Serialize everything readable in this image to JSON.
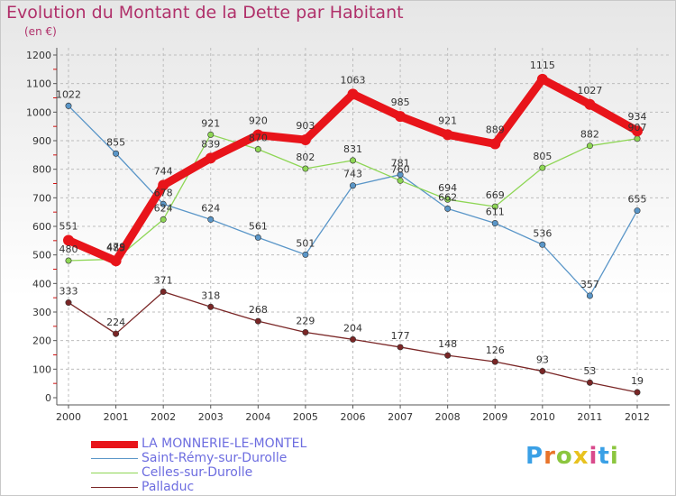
{
  "header": {
    "title": "Evolution du Montant de la Dette par Habitant",
    "subtitle": "(en €)"
  },
  "logo": {
    "text": "Proxiti",
    "colors": [
      "#3aa0e6",
      "#e8742a",
      "#8cc63f",
      "#e8c21f",
      "#d94a8c",
      "#3aa0e6",
      "#8cc63f"
    ]
  },
  "chart_data": {
    "type": "line",
    "title": "Evolution du Montant de la Dette par Habitant",
    "subtitle": "(en €)",
    "xlabel": "",
    "ylabel": "",
    "x": [
      "2000",
      "2001",
      "2002",
      "2003",
      "2004",
      "2005",
      "2006",
      "2007",
      "2008",
      "2009",
      "2010",
      "2011",
      "2012"
    ],
    "ylim": [
      0,
      1200
    ],
    "yticks": [
      0,
      100,
      200,
      300,
      400,
      500,
      600,
      700,
      800,
      900,
      1000,
      1100,
      1200
    ],
    "grid": true,
    "legend_position": "bottom-left",
    "series": [
      {
        "name": "LA MONNERIE-LE-MONTEL",
        "color": "#e8141a",
        "emphasis": "thick",
        "values": [
          551,
          479,
          744,
          839,
          920,
          903,
          1063,
          985,
          921,
          889,
          1115,
          1027,
          934
        ]
      },
      {
        "name": "Saint-Rémy-sur-Durolle",
        "color": "#5a96c8",
        "emphasis": "normal",
        "values": [
          1022,
          855,
          678,
          624,
          561,
          501,
          743,
          781,
          662,
          611,
          536,
          357,
          655
        ]
      },
      {
        "name": "Celles-sur-Durolle",
        "color": "#8ed655",
        "emphasis": "normal",
        "values": [
          480,
          485,
          624,
          921,
          870,
          802,
          831,
          760,
          694,
          669,
          805,
          882,
          907
        ]
      },
      {
        "name": "Palladuc",
        "color": "#7a2626",
        "emphasis": "normal",
        "values": [
          333,
          224,
          371,
          318,
          268,
          229,
          204,
          177,
          148,
          126,
          93,
          53,
          19
        ]
      }
    ]
  }
}
